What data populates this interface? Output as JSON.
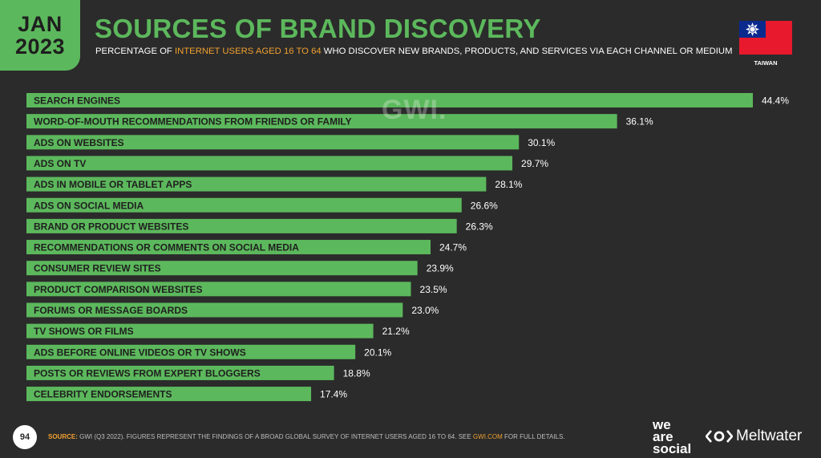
{
  "header": {
    "month": "JAN",
    "year": "2023",
    "title": "SOURCES OF BRAND DISCOVERY",
    "subtitle_pre": "PERCENTAGE OF ",
    "subtitle_highlight": "INTERNET USERS AGED 16 TO 64",
    "subtitle_post": " WHO DISCOVER NEW BRANDS, PRODUCTS, AND SERVICES VIA EACH CHANNEL OR MEDIUM",
    "country": "TAIWAN"
  },
  "watermark": "GWI.",
  "footer": {
    "page_number": "94",
    "source_label": "SOURCE:",
    "source_text": " GWI (Q3 2022). FIGURES REPRESENT THE FINDINGS OF A BROAD GLOBAL SURVEY OF INTERNET USERS AGED 16 TO 64. SEE ",
    "source_link": "GWI.COM",
    "source_end": " FOR FULL DETAILS.",
    "brand_1_line1": "we",
    "brand_1_line2": "are",
    "brand_1_line3": "social",
    "brand_2": "Meltwater"
  },
  "colors": {
    "background": "#2b2b2b",
    "bar": "#5cb85c",
    "accent": "#f0a030",
    "text": "#ffffff"
  },
  "chart_data": {
    "type": "bar",
    "orientation": "horizontal",
    "title": "SOURCES OF BRAND DISCOVERY",
    "xlim": [
      0,
      44.4
    ],
    "unit": "%",
    "categories": [
      "SEARCH ENGINES",
      "WORD-OF-MOUTH RECOMMENDATIONS FROM FRIENDS OR FAMILY",
      "ADS ON WEBSITES",
      "ADS ON TV",
      "ADS IN MOBILE OR TABLET APPS",
      "ADS ON SOCIAL MEDIA",
      "BRAND OR PRODUCT WEBSITES",
      "RECOMMENDATIONS OR COMMENTS ON SOCIAL MEDIA",
      "CONSUMER REVIEW SITES",
      "PRODUCT COMPARISON WEBSITES",
      "FORUMS OR MESSAGE BOARDS",
      "TV SHOWS OR FILMS",
      "ADS BEFORE ONLINE VIDEOS OR TV SHOWS",
      "POSTS OR REVIEWS FROM EXPERT BLOGGERS",
      "CELEBRITY ENDORSEMENTS"
    ],
    "values": [
      44.4,
      36.1,
      30.1,
      29.7,
      28.1,
      26.6,
      26.3,
      24.7,
      23.9,
      23.5,
      23.0,
      21.2,
      20.1,
      18.8,
      17.4
    ],
    "value_labels": [
      "44.4%",
      "36.1%",
      "30.1%",
      "29.7%",
      "28.1%",
      "26.6%",
      "26.3%",
      "24.7%",
      "23.9%",
      "23.5%",
      "23.0%",
      "21.2%",
      "20.1%",
      "18.8%",
      "17.4%"
    ]
  }
}
